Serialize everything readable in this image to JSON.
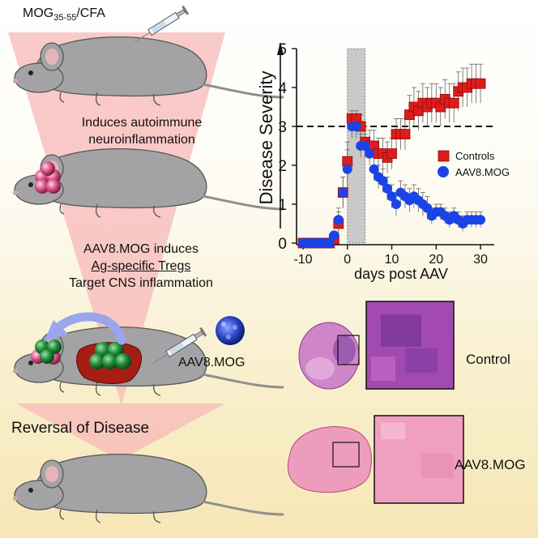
{
  "left_panel": {
    "immunogen": {
      "main": "MOG",
      "sub": "35-55",
      "rest": "/CFA"
    },
    "step1": [
      "Induces autoimmune",
      "neuroinflammation"
    ],
    "step2": {
      "line1": "AAV8.MOG induces",
      "line2": "Ag-specific Tregs",
      "line3": "Target CNS inflammation"
    },
    "injection_label": "AAV8.MOG",
    "result": "Reversal of Disease"
  },
  "histology": {
    "control_label": "Control",
    "treated_label": "AAV8.MOG"
  },
  "colors": {
    "controls": "#e01b1b",
    "aav8mog": "#1a44e8",
    "funnel": "#f7b8b8",
    "mouse_body": "#a3a3a5",
    "tregs": "#1f8b3a",
    "liver": "#a51d14"
  },
  "chart_data": {
    "type": "scatter",
    "xlabel": "days post AAV",
    "ylabel": "Disease Severity",
    "xlim": [
      -10,
      32
    ],
    "ylim": [
      0,
      5
    ],
    "xticks": [
      -10,
      0,
      10,
      20,
      30
    ],
    "yticks": [
      0,
      1,
      2,
      3,
      4,
      5
    ],
    "threshold": 3,
    "shaded_region": [
      0,
      4
    ],
    "legend_position": "right",
    "series": [
      {
        "name": "Controls",
        "marker": "square",
        "x": [
          -10,
          -9,
          -8,
          -7,
          -6,
          -5,
          -4,
          -3,
          -2,
          -1,
          0,
          1,
          2,
          3,
          4,
          5,
          6,
          7,
          8,
          9,
          10,
          11,
          12,
          13,
          14,
          15,
          16,
          17,
          18,
          19,
          20,
          21,
          22,
          23,
          24,
          25,
          26,
          27,
          28,
          29,
          30
        ],
        "y": [
          0,
          0,
          0,
          0,
          0,
          0,
          0,
          0.1,
          0.5,
          1.3,
          2.1,
          3.2,
          3.2,
          3.0,
          2.6,
          2.5,
          2.5,
          2.3,
          2.3,
          2.2,
          2.3,
          2.8,
          2.8,
          2.8,
          3.3,
          3.5,
          3.4,
          3.6,
          3.5,
          3.6,
          3.6,
          3.5,
          3.7,
          3.6,
          3.6,
          3.9,
          4.0,
          4.0,
          4.1,
          4.1,
          4.1
        ],
        "err": [
          0,
          0,
          0,
          0,
          0,
          0,
          0,
          0.1,
          0.3,
          0.4,
          0.5,
          0.2,
          0.2,
          0.3,
          0.4,
          0.4,
          0.4,
          0.4,
          0.4,
          0.4,
          0.4,
          0.4,
          0.4,
          0.4,
          0.5,
          0.5,
          0.5,
          0.5,
          0.5,
          0.5,
          0.5,
          0.5,
          0.5,
          0.5,
          0.5,
          0.5,
          0.5,
          0.5,
          0.5,
          0.5,
          0.5
        ]
      },
      {
        "name": "AAV8.MOG",
        "marker": "circle",
        "x": [
          -10,
          -9,
          -8,
          -7,
          -6,
          -5,
          -4,
          -3,
          -2,
          -1,
          0,
          1,
          2,
          3,
          4,
          5,
          6,
          7,
          8,
          9,
          10,
          11,
          12,
          13,
          14,
          15,
          16,
          17,
          18,
          19,
          20,
          21,
          22,
          23,
          24,
          25,
          26,
          27,
          28,
          29,
          30
        ],
        "y": [
          0,
          0,
          0,
          0,
          0,
          0,
          0,
          0.2,
          0.6,
          1.3,
          1.9,
          3.0,
          3.0,
          2.5,
          2.5,
          2.3,
          1.9,
          1.7,
          1.6,
          1.4,
          1.2,
          1.0,
          1.3,
          1.2,
          1.1,
          1.2,
          1.1,
          1.0,
          0.9,
          0.7,
          0.8,
          0.8,
          0.7,
          0.6,
          0.7,
          0.6,
          0.5,
          0.6,
          0.6,
          0.6,
          0.6
        ],
        "err": [
          0,
          0,
          0,
          0,
          0,
          0,
          0,
          0.1,
          0.3,
          0.4,
          0.5,
          0.3,
          0.3,
          0.3,
          0.3,
          0.3,
          0.3,
          0.3,
          0.3,
          0.3,
          0.3,
          0.3,
          0.3,
          0.3,
          0.3,
          0.3,
          0.3,
          0.3,
          0.3,
          0.2,
          0.2,
          0.2,
          0.2,
          0.2,
          0.2,
          0.2,
          0.2,
          0.2,
          0.2,
          0.2,
          0.2
        ]
      }
    ]
  }
}
